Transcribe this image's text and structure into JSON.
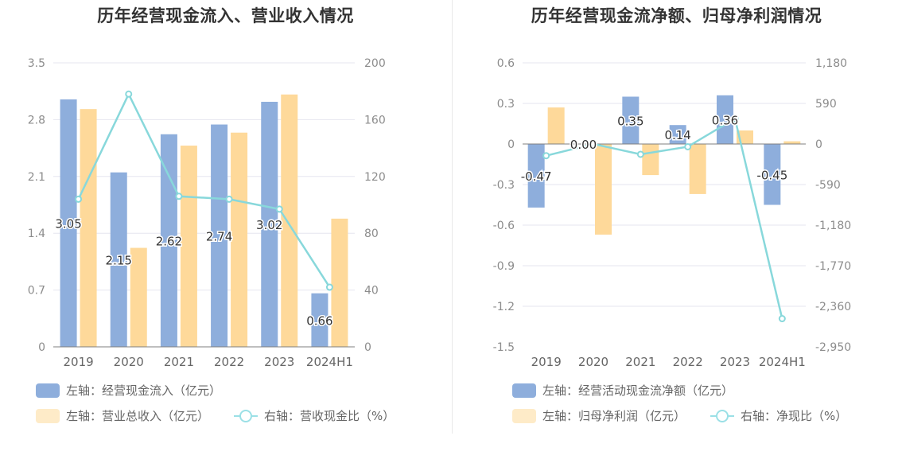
{
  "colors": {
    "bar1": "#8eaedc",
    "bar2": "#fed99a",
    "line": "#88d8db",
    "grid": "#e6e6ef",
    "axis": "#7f7f7f",
    "tick": "#8c8c8c"
  },
  "chart_data": [
    {
      "type": "bar",
      "title": "历年经营现金流入、营业收入情况",
      "categories": [
        "2019",
        "2020",
        "2021",
        "2022",
        "2023",
        "2024H1"
      ],
      "y_left": {
        "min": 0,
        "max": 3.5,
        "ticks": [
          "0",
          "0.7",
          "1.4",
          "2.1",
          "2.8",
          "3.5"
        ]
      },
      "y_right": {
        "min": 0,
        "max": 200,
        "ticks": [
          "0",
          "40",
          "80",
          "120",
          "160",
          "200"
        ]
      },
      "grid": true,
      "legend_position": "bottom-left",
      "series": [
        {
          "name": "左轴：经营现金流入（亿元）",
          "type": "bar",
          "axis": "left",
          "values": [
            3.05,
            2.15,
            2.62,
            2.74,
            3.02,
            0.66
          ],
          "labels": [
            "3.05",
            "2.15",
            "2.62",
            "2.74",
            "3.02",
            "0.66"
          ]
        },
        {
          "name": "左轴：营业总收入（亿元）",
          "type": "bar",
          "axis": "left",
          "values": [
            2.93,
            1.22,
            2.48,
            2.64,
            3.11,
            1.58
          ]
        },
        {
          "name": "右轴：营收现金比（%）",
          "type": "line",
          "axis": "right",
          "values": [
            104,
            178,
            106,
            104,
            97,
            42
          ]
        }
      ]
    },
    {
      "type": "bar",
      "title": "历年经营现金流净额、归母净利润情况",
      "categories": [
        "2019",
        "2020",
        "2021",
        "2022",
        "2023",
        "2024H1"
      ],
      "y_left": {
        "min": -1.5,
        "max": 0.6,
        "ticks": [
          "-1.5",
          "-1.2",
          "-0.9",
          "-0.6",
          "-0.3",
          "0",
          "0.3",
          "0.6"
        ]
      },
      "y_right": {
        "min": -2950,
        "max": 1180,
        "ticks": [
          "-2,950",
          "-2,360",
          "-1,770",
          "-1,180",
          "-590",
          "0",
          "590",
          "1,180"
        ]
      },
      "grid": true,
      "legend_position": "bottom-left",
      "series": [
        {
          "name": "左轴：经营活动现金流净额（亿元）",
          "type": "bar",
          "axis": "left",
          "values": [
            -0.47,
            0.0,
            0.35,
            0.14,
            0.36,
            -0.45
          ],
          "labels": [
            "-0.47",
            "0.00",
            "0.35",
            "0.14",
            "0.36",
            "-0.45"
          ]
        },
        {
          "name": "左轴：归母净利润（亿元）",
          "type": "bar",
          "axis": "left",
          "values": [
            0.27,
            -0.67,
            -0.23,
            -0.37,
            0.1,
            0.02
          ]
        },
        {
          "name": "右轴：净现比（%）",
          "type": "line",
          "axis": "right",
          "values": [
            -170,
            0,
            -150,
            -40,
            370,
            -2540
          ]
        }
      ]
    }
  ]
}
